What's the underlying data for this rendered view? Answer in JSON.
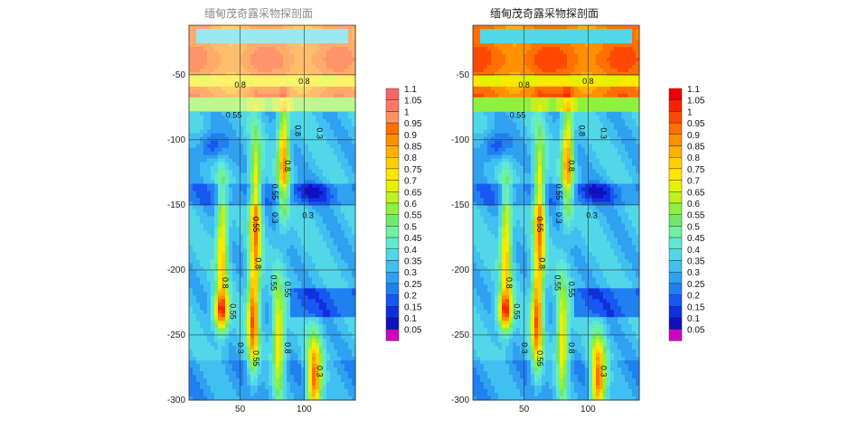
{
  "chart_data": [
    {
      "type": "heatmap",
      "title": "缅甸茂奇露采物探剖面",
      "x_ticks": [
        50,
        100
      ],
      "xlim": [
        10,
        140
      ],
      "ylim": [
        -300,
        -12
      ],
      "y_ticks": [
        -50,
        -100,
        -150,
        -200,
        -250,
        -300
      ],
      "legend_levels": [
        "1.1",
        "1.05",
        "1",
        "0.95",
        "0.9",
        "0.85",
        "0.8",
        "0.75",
        "0.7",
        "0.65",
        "0.6",
        "0.55",
        "0.5",
        "0.45",
        "0.4",
        "0.35",
        "0.3",
        "0.25",
        "0.2",
        "0.15",
        "0.1",
        "0.05"
      ],
      "contour_labels": [
        "0.8",
        "0.8",
        "0.55",
        "0.8",
        "0.3",
        "0.8",
        "0.55",
        "0.3",
        "0.55",
        "0.3",
        "0.8",
        "0.55",
        "0.55",
        "0.3",
        "0.8",
        "0.55",
        "0.8",
        "0.55",
        "0.3"
      ],
      "faded_top": true
    },
    {
      "type": "heatmap",
      "title": "缅甸茂奇露采物探剖面",
      "x_ticks": [
        50,
        100
      ],
      "xlim": [
        10,
        140
      ],
      "ylim": [
        -300,
        -12
      ],
      "y_ticks": [
        -50,
        -100,
        -150,
        -200,
        -250,
        -300
      ],
      "legend_levels": [
        "1.1",
        "1.05",
        "1",
        "0.95",
        "0.9",
        "0.85",
        "0.8",
        "0.75",
        "0.7",
        "0.65",
        "0.6",
        "0.55",
        "0.5",
        "0.45",
        "0.4",
        "0.35",
        "0.3",
        "0.25",
        "0.2",
        "0.15",
        "0.1",
        "0.05"
      ],
      "contour_labels": [
        "0.8",
        "0.8",
        "0.55",
        "0.8",
        "0.3",
        "0.8",
        "0.55",
        "0.3",
        "0.55",
        "0.3",
        "0.8",
        "0.55",
        "0.55",
        "0.3",
        "0.8",
        "0.55",
        "0.8",
        "0.55",
        "0.3"
      ],
      "faded_top": false
    }
  ],
  "colors": {
    "scale": [
      "#d000c0",
      "#1010c0",
      "#1030e0",
      "#1858f0",
      "#2080f0",
      "#30a0f0",
      "#40c0f0",
      "#50d8e8",
      "#60e8d0",
      "#70f0a0",
      "#70e870",
      "#90f040",
      "#c0f020",
      "#e8f000",
      "#ffe800",
      "#ffd000",
      "#ffb000",
      "#ff9000",
      "#ff7000",
      "#ff4800",
      "#ff2000",
      "#f00000"
    ]
  }
}
